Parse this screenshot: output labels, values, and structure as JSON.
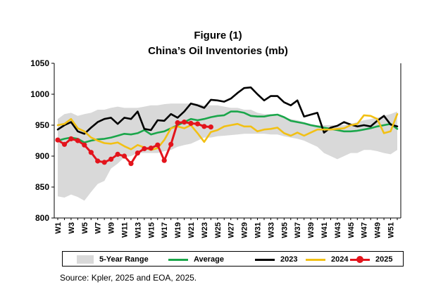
{
  "figure_title": "Figure (1)",
  "subtitle": "China’s Oil Inventories (mb)",
  "source": "Source: Kpler, 2025 and EOA, 2025.",
  "colors": {
    "range": "#d9d9d9",
    "average": "#1aa64a",
    "y2023": "#000000",
    "y2024": "#f2c014",
    "y2025": "#e3141c"
  },
  "legend": [
    {
      "key": "range",
      "label": "5-Year Range"
    },
    {
      "key": "average",
      "label": "Average"
    },
    {
      "key": "y2023",
      "label": "2023"
    },
    {
      "key": "y2024",
      "label": "2024"
    },
    {
      "key": "y2025",
      "label": "2025"
    }
  ],
  "chart_data": {
    "type": "line",
    "title": "China’s Oil Inventories (mb)",
    "ylim": [
      800,
      1050
    ],
    "yticks": [
      800,
      850,
      900,
      950,
      1000,
      1050
    ],
    "weeks": 52,
    "xtick_labels": [
      "W1",
      "W3",
      "W5",
      "W7",
      "W9",
      "W11",
      "W13",
      "W15",
      "W17",
      "W19",
      "W21",
      "W23",
      "W25",
      "W27",
      "W29",
      "W31",
      "W33",
      "W35",
      "W37",
      "W39",
      "W41",
      "W43",
      "W45",
      "W47",
      "W49",
      "W51"
    ],
    "grid": false,
    "legend_position": "bottom",
    "range": {
      "name": "5-Year Range",
      "low": [
        835,
        833,
        838,
        834,
        828,
        842,
        855,
        860,
        880,
        888,
        898,
        900,
        905,
        905,
        905,
        905,
        908,
        910,
        915,
        918,
        920,
        925,
        930,
        930,
        932,
        933,
        934,
        935,
        936,
        936,
        936,
        936,
        935,
        935,
        932,
        930,
        928,
        925,
        920,
        915,
        905,
        900,
        895,
        900,
        905,
        905,
        910,
        910,
        908,
        905,
        903,
        910
      ],
      "high": [
        960,
        968,
        970,
        965,
        968,
        970,
        975,
        975,
        978,
        980,
        978,
        978,
        978,
        980,
        982,
        982,
        984,
        985,
        985,
        985,
        985,
        985,
        982,
        982,
        982,
        980,
        978,
        978,
        975,
        975,
        970,
        968,
        968,
        965,
        962,
        960,
        958,
        955,
        952,
        950,
        950,
        950,
        950,
        950,
        952,
        955,
        958,
        960,
        962,
        965,
        968,
        972
      ]
    },
    "series": [
      {
        "name": "Average",
        "key": "average",
        "values": [
          925,
          928,
          930,
          928,
          922,
          925,
          927,
          928,
          930,
          933,
          936,
          935,
          937,
          942,
          935,
          938,
          940,
          945,
          950,
          955,
          960,
          958,
          960,
          963,
          965,
          966,
          972,
          972,
          970,
          965,
          964,
          964,
          966,
          967,
          963,
          957,
          955,
          953,
          950,
          948,
          946,
          944,
          942,
          940,
          940,
          941,
          943,
          945,
          948,
          950,
          952,
          944
        ]
      },
      {
        "name": "2023",
        "key": "y2023",
        "values": [
          943,
          950,
          955,
          940,
          936,
          946,
          955,
          960,
          962,
          952,
          962,
          960,
          972,
          944,
          942,
          958,
          957,
          968,
          962,
          972,
          985,
          982,
          978,
          991,
          990,
          988,
          993,
          1002,
          1010,
          1011,
          1000,
          990,
          997,
          997,
          987,
          982,
          990,
          964,
          967,
          970,
          938,
          946,
          949,
          955,
          951,
          948,
          950,
          948,
          957,
          965,
          951,
          948
        ]
      },
      {
        "name": "2024",
        "key": "y2024",
        "values": [
          950,
          952,
          960,
          945,
          940,
          930,
          925,
          921,
          920,
          922,
          916,
          911,
          918,
          914,
          910,
          913,
          926,
          945,
          948,
          945,
          950,
          937,
          923,
          939,
          942,
          948,
          950,
          952,
          948,
          948,
          940,
          943,
          944,
          946,
          937,
          933,
          938,
          933,
          938,
          943,
          943,
          943,
          944,
          945,
          950,
          952,
          966,
          965,
          960,
          937,
          940,
          968
        ]
      },
      {
        "name": "2025",
        "key": "y2025",
        "values": [
          926,
          919,
          928,
          925,
          918,
          906,
          892,
          890,
          895,
          903,
          900,
          888,
          905,
          912,
          913,
          918,
          893,
          919,
          954,
          955,
          953,
          952,
          948,
          947
        ]
      }
    ]
  }
}
